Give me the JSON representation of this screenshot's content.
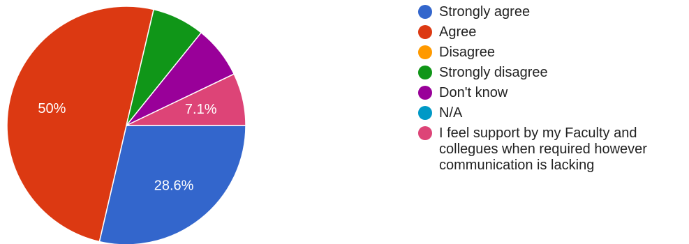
{
  "chart_data": {
    "type": "pie",
    "slices": [
      {
        "name": "Strongly agree",
        "value": 28.6,
        "color": "#3366cc",
        "label": "28.6%"
      },
      {
        "name": "Agree",
        "value": 50,
        "color": "#dc3912",
        "label": "50%"
      },
      {
        "name": "Disagree",
        "value": 0,
        "color": "#ff9900",
        "label": ""
      },
      {
        "name": "Strongly disagree",
        "value": 7.1,
        "color": "#109618",
        "label": ""
      },
      {
        "name": "Don't know",
        "value": 7.1,
        "color": "#990099",
        "label": ""
      },
      {
        "name": "N/A",
        "value": 0,
        "color": "#0099c6",
        "label": ""
      },
      {
        "name": "I feel support by my Faculty and collegues when required however communication is lacking",
        "value": 7.1,
        "color": "#dd4477",
        "label": "7.1%"
      }
    ],
    "legend": {
      "position": "right",
      "lines": [
        "Strongly agree",
        "Agree",
        "Disagree",
        "Strongly disagree",
        "Don't know",
        "N/A",
        "I feel support by my Faculty and\ncollegues when required however\ncommunication is lacking"
      ]
    }
  }
}
